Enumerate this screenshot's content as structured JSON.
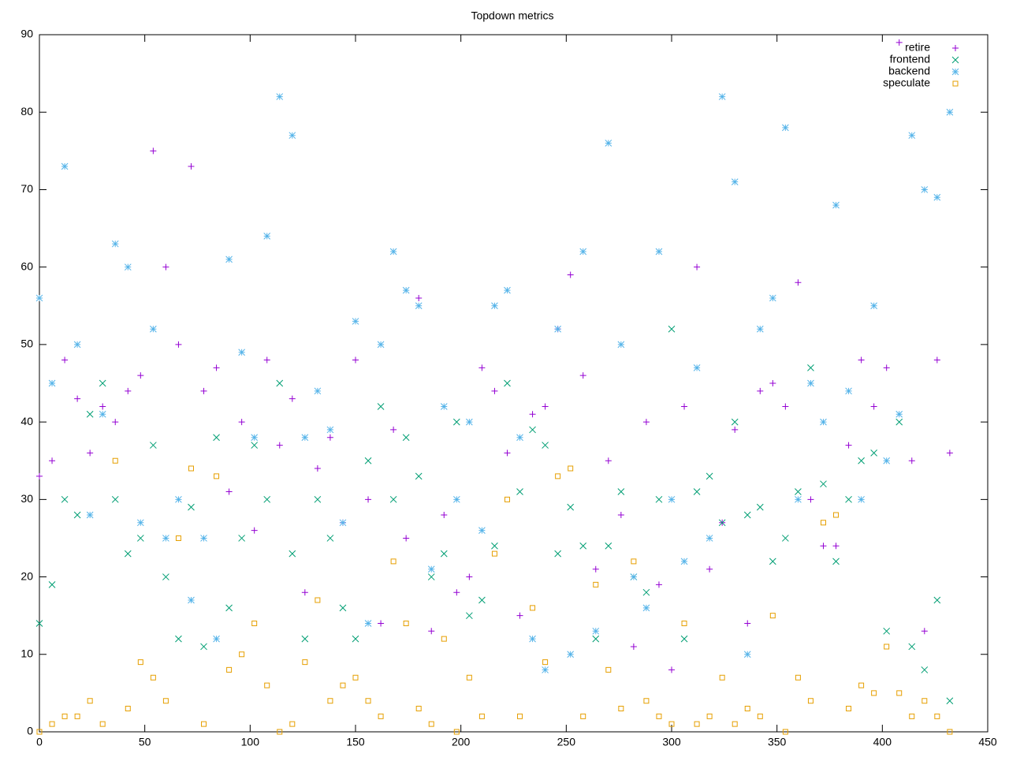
{
  "chart_data": {
    "type": "scatter",
    "title": "Topdown metrics",
    "x": [
      0,
      6,
      12,
      18,
      24,
      30,
      36,
      42,
      48,
      54,
      60,
      66,
      72,
      78,
      84,
      90,
      96,
      102,
      108,
      114,
      120,
      126,
      132,
      138,
      144,
      150,
      156,
      162,
      168,
      174,
      180,
      186,
      192,
      198,
      204,
      210,
      216,
      222,
      228,
      234,
      240,
      246,
      252,
      258,
      264,
      270,
      276,
      282,
      288,
      294,
      300,
      306,
      312,
      318,
      324,
      330,
      336,
      342,
      348,
      354,
      360,
      366,
      372,
      378,
      384,
      390,
      396,
      402,
      408,
      414,
      420,
      426,
      432
    ],
    "series": [
      {
        "name": "retire",
        "color": "#9400d3",
        "marker": "plus",
        "values": [
          33,
          35,
          48,
          43,
          36,
          42,
          40,
          44,
          46,
          75,
          60,
          50,
          73,
          44,
          47,
          31,
          40,
          26,
          48,
          37,
          43,
          18,
          34,
          38,
          27,
          48,
          30,
          14,
          39,
          25,
          56,
          13,
          28,
          18,
          20,
          47,
          44,
          36,
          15,
          41,
          42,
          52,
          59,
          46,
          21,
          35,
          28,
          11,
          40,
          19,
          8,
          42,
          60,
          21,
          27,
          39,
          14,
          44,
          45,
          42,
          58,
          30,
          24,
          24,
          37,
          48,
          42,
          47,
          89,
          35,
          13,
          48,
          36
        ]
      },
      {
        "name": "frontend",
        "color": "#009e73",
        "marker": "cross",
        "values": [
          14,
          19,
          30,
          28,
          41,
          45,
          30,
          23,
          25,
          37,
          20,
          12,
          29,
          11,
          38,
          16,
          25,
          37,
          30,
          45,
          23,
          12,
          30,
          25,
          16,
          12,
          35,
          42,
          30,
          38,
          33,
          20,
          23,
          40,
          15,
          17,
          24,
          45,
          31,
          39,
          37,
          23,
          29,
          24,
          12,
          24,
          31,
          20,
          18,
          30,
          52,
          12,
          31,
          33,
          27,
          40,
          28,
          29,
          22,
          25,
          31,
          47,
          32,
          22,
          30,
          35,
          36,
          13,
          40,
          11,
          8,
          17,
          4
        ]
      },
      {
        "name": "backend",
        "color": "#56b4e9",
        "marker": "star",
        "values": [
          56,
          45,
          73,
          50,
          28,
          41,
          63,
          60,
          27,
          52,
          25,
          30,
          17,
          25,
          12,
          61,
          49,
          38,
          64,
          82,
          77,
          38,
          44,
          39,
          27,
          53,
          14,
          50,
          62,
          57,
          55,
          21,
          42,
          30,
          40,
          26,
          55,
          57,
          38,
          12,
          8,
          52,
          10,
          62,
          13,
          76,
          50,
          20,
          16,
          62,
          30,
          22,
          47,
          25,
          82,
          71,
          10,
          52,
          56,
          78,
          30,
          45,
          40,
          68,
          44,
          30,
          55,
          35,
          41,
          77,
          70,
          69,
          80
        ]
      },
      {
        "name": "speculate",
        "color": "#e69f00",
        "marker": "square",
        "values": [
          0,
          1,
          2,
          2,
          4,
          1,
          35,
          3,
          9,
          7,
          4,
          25,
          34,
          1,
          33,
          8,
          10,
          14,
          6,
          0,
          1,
          9,
          17,
          4,
          6,
          7,
          4,
          2,
          22,
          14,
          3,
          1,
          12,
          0,
          7,
          2,
          23,
          30,
          2,
          16,
          9,
          33,
          34,
          2,
          19,
          8,
          3,
          22,
          4,
          2,
          1,
          14,
          1,
          2,
          7,
          1,
          3,
          2,
          15,
          0,
          7,
          4,
          27,
          28,
          3,
          6,
          5,
          11,
          5,
          2,
          4,
          2,
          0
        ]
      }
    ],
    "xlim": [
      0,
      450
    ],
    "xticks": [
      0,
      50,
      100,
      150,
      200,
      250,
      300,
      350,
      400,
      450
    ],
    "ylim": [
      0,
      90
    ],
    "yticks": [
      0,
      10,
      20,
      30,
      40,
      50,
      60,
      70,
      80,
      90
    ],
    "legend": "top right"
  }
}
